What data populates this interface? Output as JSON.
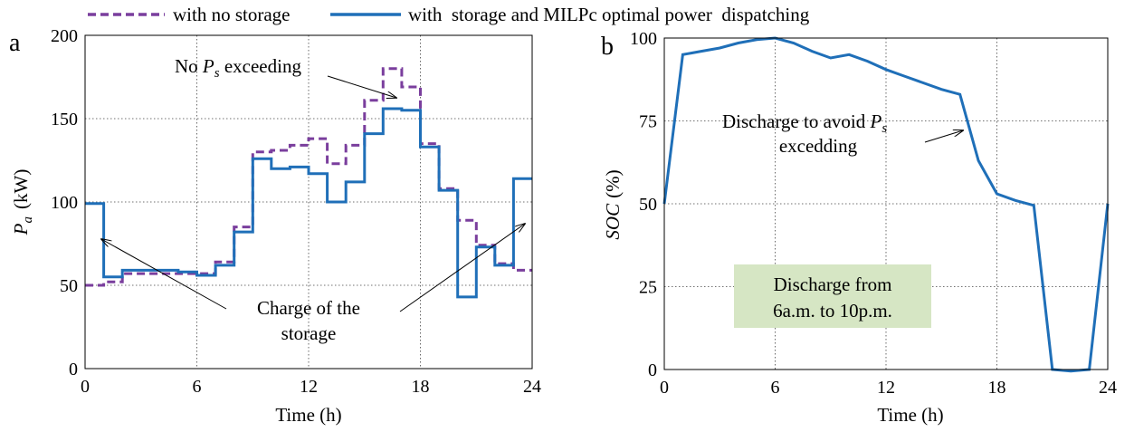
{
  "legend": {
    "no_storage": "with no storage",
    "with_storage": "with  storage and MILPc optimal power  dispatching"
  },
  "colors": {
    "no_storage": "#7a3e9d",
    "with_storage": "#1f6fb8",
    "note_box": "#d6e6c4"
  },
  "chart_data": [
    {
      "panel": "a",
      "type": "line",
      "step": true,
      "xlabel": "Time (h)",
      "ylabel_main": "P",
      "ylabel_sub": "a",
      "ylabel_unit": "(kW)",
      "xlim": [
        0,
        24
      ],
      "ylim": [
        0,
        200
      ],
      "xticks": [
        0,
        6,
        12,
        18,
        24
      ],
      "yticks": [
        0,
        50,
        100,
        150,
        200
      ],
      "grid": true,
      "series": [
        {
          "name": "with no storage",
          "style": "dashed",
          "values": [
            50,
            52,
            57,
            57,
            57,
            57,
            57,
            64,
            85,
            130,
            131,
            134,
            138,
            123,
            134,
            161,
            180,
            169,
            135,
            108,
            89,
            74,
            63,
            59
          ]
        },
        {
          "name": "with  storage and MILPc optimal power  dispatching",
          "style": "solid",
          "values": [
            99,
            55,
            59,
            59,
            59,
            58,
            56,
            62,
            82,
            126,
            120,
            121,
            117,
            100,
            112,
            141,
            156,
            155,
            133,
            107,
            43,
            73,
            62,
            114
          ]
        }
      ],
      "annotations": {
        "ps_prefix": "No ",
        "ps_main": "P",
        "ps_sub": "s",
        "ps_suffix": " exceeding",
        "charge_line1": "Charge of the",
        "charge_line2": "storage"
      }
    },
    {
      "panel": "b",
      "type": "line",
      "xlabel": "Time (h)",
      "ylabel_main": "SOC",
      "ylabel_unit": "(%)",
      "xlim": [
        0,
        24
      ],
      "ylim": [
        0,
        100
      ],
      "xticks": [
        0,
        6,
        12,
        18,
        24
      ],
      "yticks": [
        0,
        25,
        50,
        75,
        100
      ],
      "grid": true,
      "series": [
        {
          "name": "with  storage and MILPc optimal power  dispatching",
          "style": "solid",
          "x": [
            0,
            1,
            2,
            3,
            4,
            5,
            6,
            7,
            8,
            9,
            10,
            11,
            12,
            13,
            14,
            15,
            16,
            17,
            18,
            19,
            20,
            21,
            22,
            23,
            24
          ],
          "values": [
            50,
            95,
            96,
            97,
            98.5,
            99.5,
            100,
            98.5,
            96,
            94,
            95,
            93,
            90.5,
            88.5,
            86.5,
            84.5,
            83,
            63,
            53,
            51,
            49.5,
            0,
            -0.5,
            0,
            50
          ]
        }
      ],
      "annotations": {
        "discharge_line1_prefix": "Discharge to avoid ",
        "discharge_main": "P",
        "discharge_sub": "s",
        "discharge_line2": "excedding",
        "box_line1": "Discharge from",
        "box_line2": "6a.m. to 10p.m."
      }
    }
  ],
  "panel_letters": {
    "a": "a",
    "b": "b"
  }
}
